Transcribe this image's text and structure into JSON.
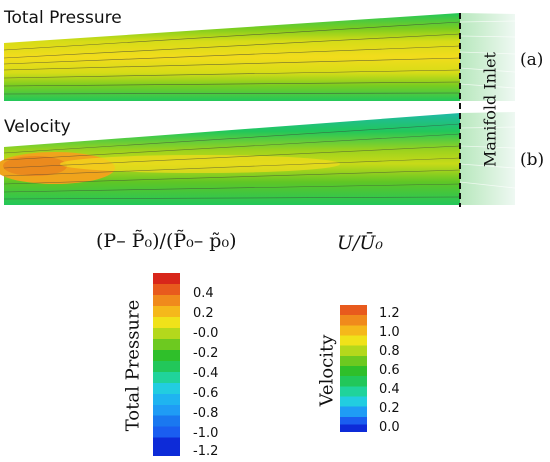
{
  "panels": [
    {
      "title": "Total Pressure",
      "tag": "(a)"
    },
    {
      "title": "Velocity",
      "tag": "(b)"
    }
  ],
  "inlet_label": "Manifold Inlet",
  "colorbars": [
    {
      "formula": "(P– P̃₀)/(P̃₀– p̃₀)",
      "label": "Total Pressure",
      "ticks": [
        "0.4",
        "0.2",
        "-0.0",
        "-0.2",
        "-0.4",
        "-0.6",
        "-0.8",
        "-1.0",
        "-1.2"
      ],
      "range": [
        -1.2,
        0.5
      ]
    },
    {
      "formula": "U/Ū₀",
      "label": "Velocity",
      "ticks": [
        "1.2",
        "1.0",
        "0.8",
        "0.6",
        "0.4",
        "0.2",
        "0.0"
      ],
      "range": [
        0.0,
        1.3
      ]
    }
  ],
  "colors": {
    "bands": [
      "#0d2bd8",
      "#1a5ef0",
      "#1f9cf5",
      "#22cde0",
      "#20d39b",
      "#22c75a",
      "#2fbf2a",
      "#6dc920",
      "#b4d81c",
      "#f0e21a",
      "#f5b81b",
      "#f08a1c",
      "#e85a1d",
      "#d8261a"
    ]
  }
}
